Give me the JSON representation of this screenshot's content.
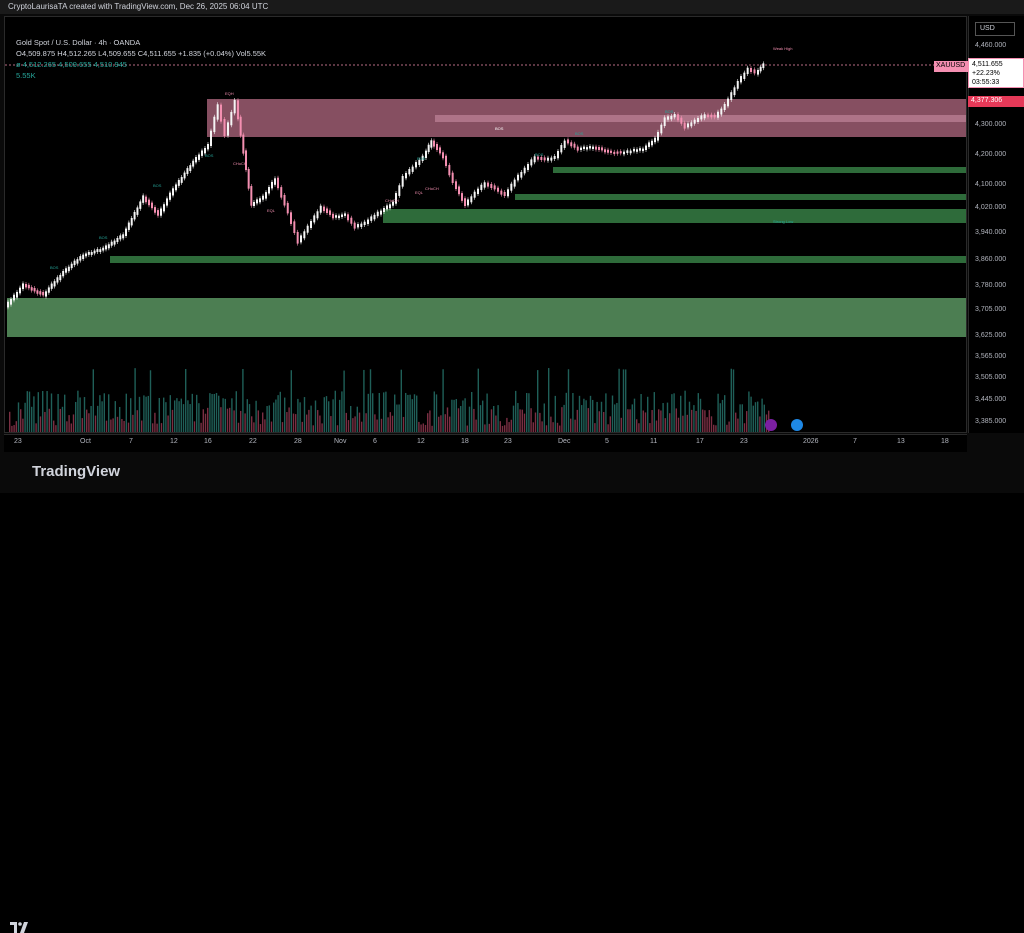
{
  "header": {
    "caption": "CryptoLaurisaTA created with TradingView.com, Dec 26, 2025 06:04 UTC"
  },
  "legend": {
    "title": "Gold Spot / U.S. Dollar · 4h · OANDA",
    "ohlc": "O4,509.875  H4,512.265  L4,509.655  C4,511.655  +1.835 (+0.04%)  Vol5.55K",
    "indicator_values": "4,512.265  4,509.655  4,510.945",
    "indicator_prefix": "ø",
    "volume": "5.55K"
  },
  "price_axis": {
    "currency": "USD",
    "ticks": [
      "4,460.000",
      "4,400.000",
      "4,300.000",
      "4,200.000",
      "4,100.000",
      "4,020.000",
      "3,940.000",
      "3,860.000",
      "3,780.000",
      "3,705.000",
      "3,625.000",
      "3,565.000",
      "3,505.000",
      "3,445.000",
      "3,385.000"
    ],
    "last_price": "4,511.655",
    "last_change": "+22.23%",
    "countdown": "03:55:33",
    "zone_price": "4,377.306"
  },
  "symbol_flag": "XAUUSD",
  "time_axis": {
    "labels": [
      "23",
      "Oct",
      "7",
      "12",
      "16",
      "22",
      "28",
      "Nov",
      "6",
      "12",
      "18",
      "23",
      "Dec",
      "5",
      "11",
      "17",
      "23",
      "2026",
      "7",
      "13",
      "18"
    ]
  },
  "annotations": {
    "bos_labels": [
      "BOS",
      "BOS",
      "BOS",
      "BOS",
      "BOS",
      "BOS",
      "BOS",
      "BOS"
    ],
    "choch_labels": [
      "CHoCH",
      "CHoCH",
      "EQL",
      "CHoCH",
      "EQL"
    ],
    "eqh": "EQH",
    "weak_high": "Weak High",
    "strong_low": "Strong Low",
    "middle_bos": "BOS"
  },
  "footer": {
    "brand": "TradingView"
  },
  "colors": {
    "bull": "#26a69a",
    "bear": "#f48fb1",
    "supply_zone": "#f48fb1",
    "demand_zone": "#2e6b3a",
    "big_demand": "#66a86e"
  }
}
